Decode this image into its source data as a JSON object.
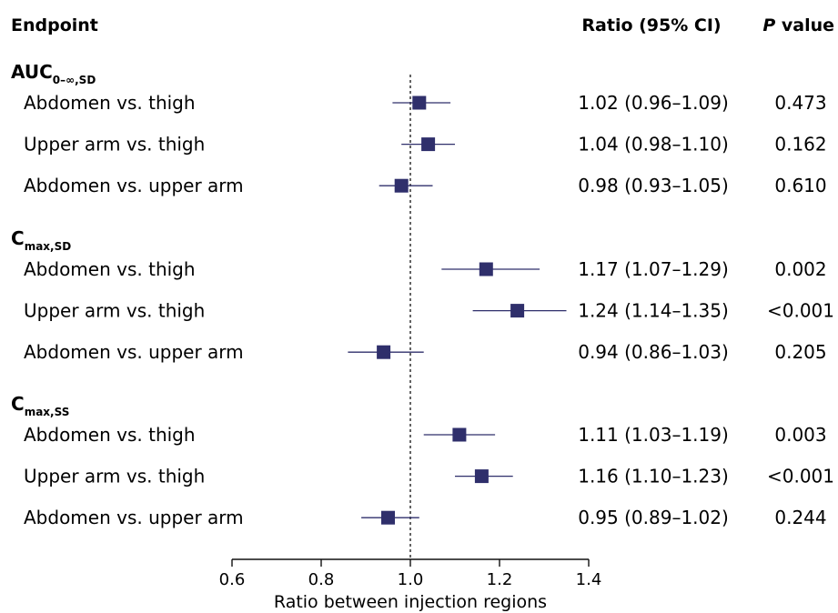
{
  "headers": {
    "endpoint": "Endpoint",
    "ratio": "Ratio (95% CI)",
    "p_italic": "P",
    "p_rest": " value"
  },
  "axis": {
    "title": "Ratio between injection regions",
    "ticks": [
      "0.6",
      "0.8",
      "1.0",
      "1.2",
      "1.4"
    ],
    "tick_values": [
      0.6,
      0.8,
      1.0,
      1.2,
      1.4
    ],
    "xlim": [
      0.6,
      1.4
    ],
    "reference_line": 1.0
  },
  "colors": {
    "marker": "#2f2f6b",
    "line": "#2f2f6b",
    "text": "#111111"
  },
  "chart_data": {
    "type": "forest",
    "xlabel": "Ratio between injection regions",
    "xlim": [
      0.6,
      1.4
    ],
    "groups": [
      {
        "main": "AUC",
        "sub": "0–∞,SD",
        "rows": [
          {
            "label": "Abdomen vs. thigh",
            "ratio": 1.02,
            "lo": 0.96,
            "hi": 1.09,
            "ci_text": "1.02 (0.96–1.09)",
            "p": "0.473"
          },
          {
            "label": "Upper arm vs. thigh",
            "ratio": 1.04,
            "lo": 0.98,
            "hi": 1.1,
            "ci_text": "1.04 (0.98–1.10)",
            "p": "0.162"
          },
          {
            "label": "Abdomen vs. upper arm",
            "ratio": 0.98,
            "lo": 0.93,
            "hi": 1.05,
            "ci_text": "0.98 (0.93–1.05)",
            "p": "0.610"
          }
        ]
      },
      {
        "main": "C",
        "sub": "max,SD",
        "rows": [
          {
            "label": "Abdomen vs. thigh",
            "ratio": 1.17,
            "lo": 1.07,
            "hi": 1.29,
            "ci_text": "1.17 (1.07–1.29)",
            "p": "0.002"
          },
          {
            "label": "Upper arm vs. thigh",
            "ratio": 1.24,
            "lo": 1.14,
            "hi": 1.35,
            "ci_text": "1.24 (1.14–1.35)",
            "p": "<0.001"
          },
          {
            "label": "Abdomen vs. upper arm",
            "ratio": 0.94,
            "lo": 0.86,
            "hi": 1.03,
            "ci_text": "0.94 (0.86–1.03)",
            "p": "0.205"
          }
        ]
      },
      {
        "main": "C",
        "sub": "max,SS",
        "rows": [
          {
            "label": "Abdomen vs. thigh",
            "ratio": 1.11,
            "lo": 1.03,
            "hi": 1.19,
            "ci_text": "1.11 (1.03–1.19)",
            "p": "0.003"
          },
          {
            "label": "Upper arm vs. thigh",
            "ratio": 1.16,
            "lo": 1.1,
            "hi": 1.23,
            "ci_text": "1.16 (1.10–1.23)",
            "p": "<0.001"
          },
          {
            "label": "Abdomen vs. upper arm",
            "ratio": 0.95,
            "lo": 0.89,
            "hi": 1.02,
            "ci_text": "0.95 (0.89–1.02)",
            "p": "0.244"
          }
        ]
      }
    ]
  }
}
